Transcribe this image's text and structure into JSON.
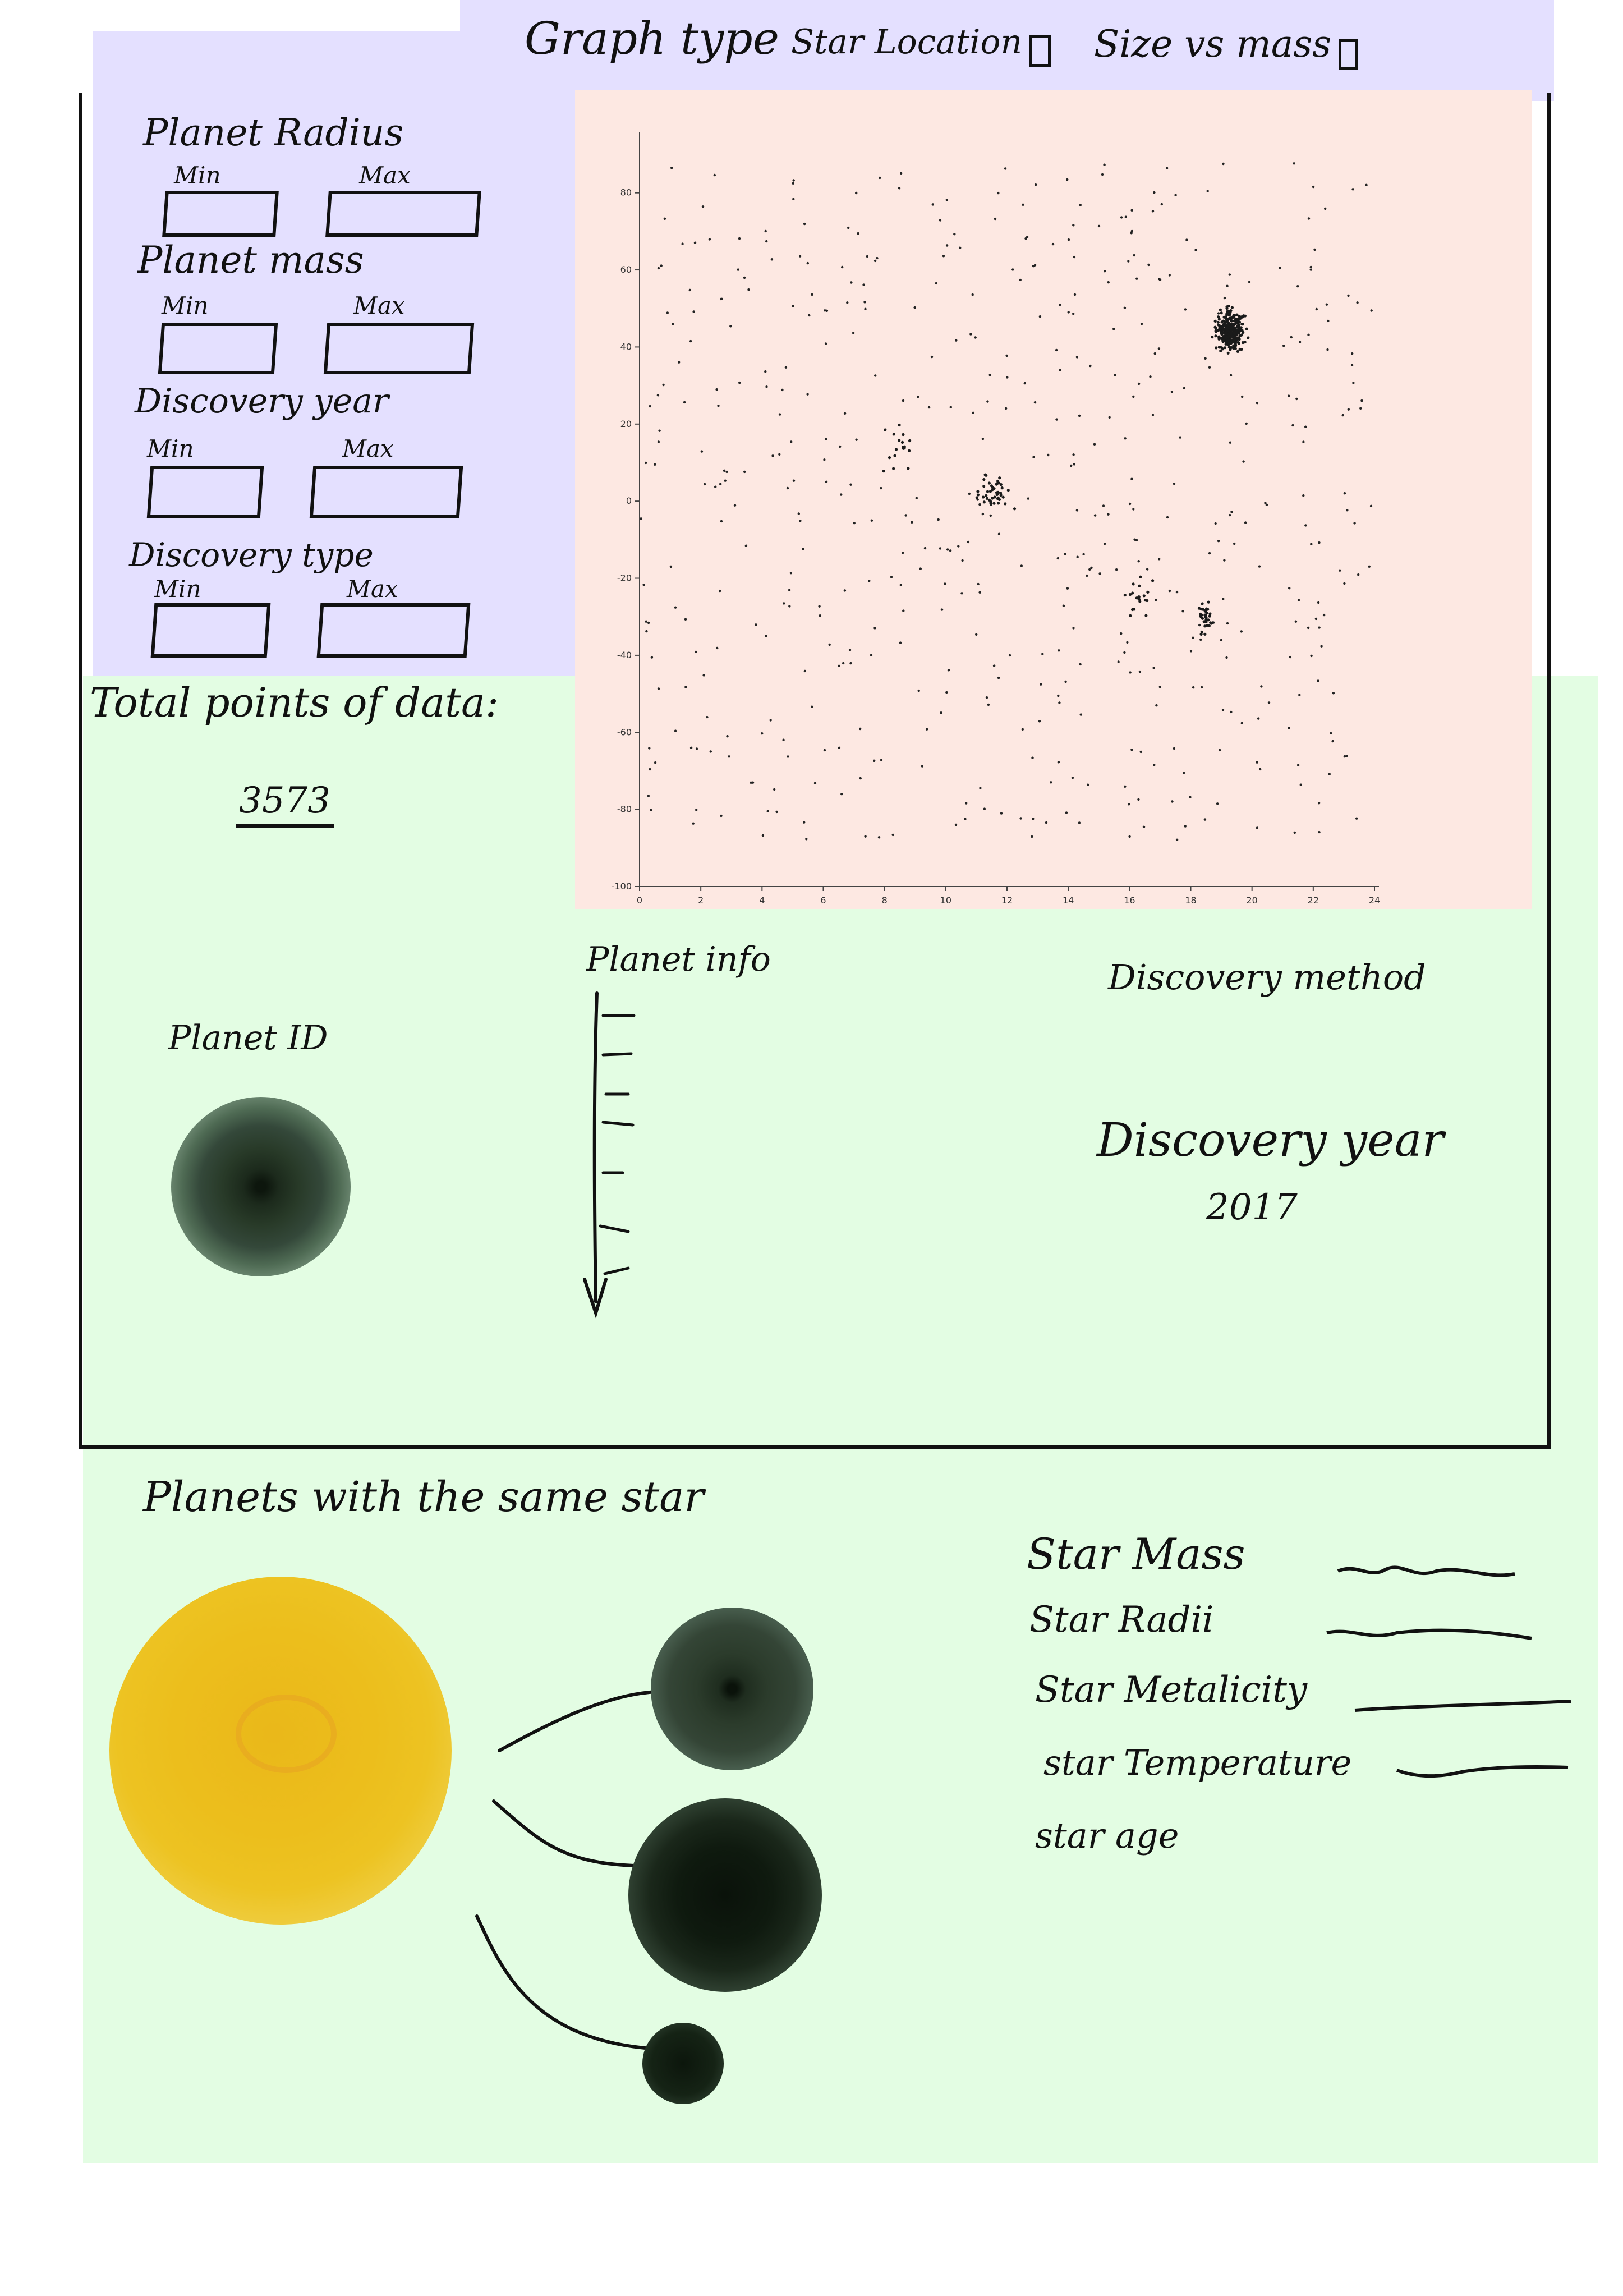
{
  "header": {
    "graph_type_label": "Graph type",
    "option_star_location": "Star Location",
    "option_size_vs_mass": "Size vs mass"
  },
  "filters": [
    {
      "title": "Planet Radius",
      "min_label": "Min",
      "max_label": "Max"
    },
    {
      "title": "Planet mass",
      "min_label": "Min",
      "max_label": "Max"
    },
    {
      "title": "Discovery year",
      "min_label": "Min",
      "max_label": "Max"
    },
    {
      "title": "Discovery type",
      "min_label": "Min",
      "max_label": "Max"
    }
  ],
  "totals": {
    "label": "Total points of data:",
    "value": "3573"
  },
  "chart_data": {
    "type": "scatter",
    "xlim": [
      0,
      24
    ],
    "ylim": [
      -100,
      90
    ],
    "x_ticks": [
      0,
      2,
      4,
      6,
      8,
      10,
      12,
      14,
      16,
      18,
      20,
      22,
      24
    ],
    "y_ticks": [
      80,
      60,
      40,
      20,
      0,
      -20,
      -40,
      -60,
      -80,
      -100
    ],
    "grid": false,
    "points_shown": "approx. 1000 scattered points with dense clusters near (19.3, 44), (11.6, 2) and (18.5, -30)",
    "clusters": [
      {
        "x": 19.3,
        "y": 44,
        "spread_x": 0.35,
        "spread_y": 4.5,
        "count": 300
      },
      {
        "x": 11.6,
        "y": 2,
        "spread_x": 0.5,
        "spread_y": 4,
        "count": 45
      },
      {
        "x": 18.5,
        "y": -30,
        "spread_x": 0.2,
        "spread_y": 4,
        "count": 35
      },
      {
        "x": 8.5,
        "y": 12,
        "spread_x": 0.4,
        "spread_y": 6,
        "count": 20
      },
      {
        "x": 16.3,
        "y": -24,
        "spread_x": 0.4,
        "spread_y": 5,
        "count": 20
      }
    ],
    "background_points": 520
  },
  "planet_panel": {
    "planet_id_label": "Planet ID",
    "planet_info_label": "Planet info",
    "discovery_method_label": "Discovery method",
    "discovery_year_label": "Discovery year",
    "discovery_year_value": "2017"
  },
  "same_star": {
    "title": "Planets with the same star",
    "star_props": [
      {
        "label": "Star Mass"
      },
      {
        "label": "Star Radii"
      },
      {
        "label": "Star Metalicity"
      },
      {
        "label": "star Temperature"
      },
      {
        "label": "star age"
      }
    ]
  },
  "colors": {
    "lavender": "#e4e0ff",
    "green": "#e3fde3",
    "pink": "#fde8e2",
    "star": "#ecc21a",
    "planet": "#2a3a2a"
  }
}
